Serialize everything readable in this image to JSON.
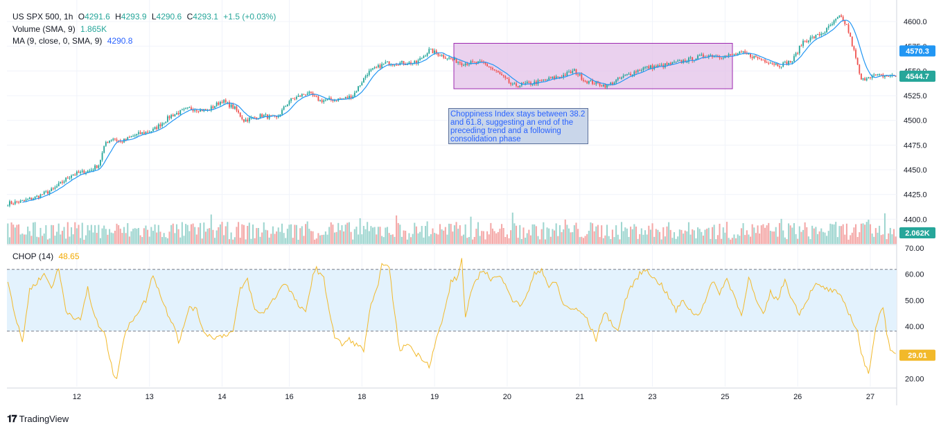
{
  "symbol": "US SPX 500, 1h",
  "ohlc": {
    "open_label": "O",
    "open": "4291.6",
    "high_label": "H",
    "high": "4293.9",
    "low_label": "L",
    "low": "4290.6",
    "close_label": "C",
    "close": "4293.1",
    "change": "+1.5 (+0.03%)"
  },
  "volume_indicator": {
    "label": "Volume (SMA, 9)",
    "value": "1.865K"
  },
  "ma_indicator": {
    "label": "MA (9, close, 0, SMA, 9)",
    "value": "4290.8"
  },
  "chop_indicator": {
    "label": "CHOP (14)",
    "value": "48.65"
  },
  "annotation_text": "Choppiness Index stays between 38.2 and 61.8, suggesting an end of the preceding trend and a following consolidation phase",
  "brand": "TradingView",
  "colors": {
    "up": "#26a69a",
    "down": "#ef5350",
    "ma": "#2196f3",
    "chop": "#f2b92a",
    "range_box": "#e1bee7",
    "chop_band": "#e3f2fd"
  },
  "chart_data": [
    {
      "type": "candlestick",
      "title": "US SPX 500, 1h",
      "y_ticks": [
        "4600.0",
        "4575.0",
        "4550.0",
        "4525.0",
        "4500.0",
        "4475.0",
        "4450.0",
        "4425.0",
        "4400.0"
      ],
      "x_ticks": [
        "12",
        "13",
        "14",
        "16",
        "18",
        "19",
        "20",
        "21",
        "23",
        "25",
        "26",
        "27"
      ],
      "ylim": [
        4375,
        4612
      ],
      "last_price_label": "4544.7",
      "ma_price_label": "4570.3",
      "volume_label": "2.062K",
      "series": [
        {
          "name": "price",
          "anchors": [
            [
              0,
              4416
            ],
            [
              8,
              4418
            ],
            [
              15,
              4422
            ],
            [
              25,
              4430
            ],
            [
              35,
              4445
            ],
            [
              45,
              4449
            ],
            [
              50,
              4455
            ],
            [
              54,
              4478
            ],
            [
              58,
              4482
            ],
            [
              62,
              4478
            ],
            [
              70,
              4485
            ],
            [
              80,
              4490
            ],
            [
              90,
              4505
            ],
            [
              100,
              4512
            ],
            [
              110,
              4510
            ],
            [
              118,
              4520
            ],
            [
              125,
              4512
            ],
            [
              130,
              4500
            ],
            [
              140,
              4505
            ],
            [
              148,
              4502
            ],
            [
              155,
              4520
            ],
            [
              165,
              4528
            ],
            [
              172,
              4520
            ],
            [
              185,
              4522
            ],
            [
              190,
              4525
            ],
            [
              198,
              4548
            ],
            [
              208,
              4558
            ],
            [
              225,
              4558
            ],
            [
              232,
              4571
            ],
            [
              240,
              4565
            ],
            [
              250,
              4558
            ],
            [
              262,
              4558
            ],
            [
              270,
              4548
            ],
            [
              278,
              4535
            ],
            [
              290,
              4538
            ],
            [
              305,
              4545
            ],
            [
              312,
              4550
            ],
            [
              318,
              4540
            ],
            [
              330,
              4535
            ],
            [
              340,
              4545
            ],
            [
              350,
              4553
            ],
            [
              360,
              4555
            ],
            [
              372,
              4560
            ],
            [
              385,
              4566
            ],
            [
              395,
              4565
            ],
            [
              405,
              4568
            ],
            [
              418,
              4560
            ],
            [
              425,
              4556
            ],
            [
              432,
              4560
            ],
            [
              438,
              4580
            ],
            [
              445,
              4585
            ],
            [
              450,
              4590
            ],
            [
              458,
              4605
            ],
            [
              462,
              4596
            ],
            [
              466,
              4570
            ],
            [
              470,
              4540
            ],
            [
              474,
              4545
            ]
          ]
        },
        {
          "name": "MA (9, close, 0, SMA, 9)"
        },
        {
          "name": "Volume (SMA, 9)"
        }
      ],
      "annotations": [
        {
          "type": "rectangle",
          "x_range": [
            "19",
            "25"
          ],
          "y_range": [
            4532,
            4578
          ]
        }
      ]
    },
    {
      "type": "line",
      "title": "CHOP (14)",
      "y_ticks": [
        "70.00",
        "60.00",
        "50.00",
        "40.00",
        "29.00",
        "20.00"
      ],
      "ylim": [
        17,
        71
      ],
      "band": [
        38.2,
        61.8
      ],
      "last_value_label": "29.01",
      "series": [
        {
          "name": "CHOP (14)",
          "anchors": [
            [
              0,
              58
            ],
            [
              4,
              44
            ],
            [
              8,
              34
            ],
            [
              12,
              54
            ],
            [
              16,
              57
            ],
            [
              20,
              60
            ],
            [
              24,
              55
            ],
            [
              28,
              62
            ],
            [
              32,
              46
            ],
            [
              36,
              44
            ],
            [
              40,
              42
            ],
            [
              44,
              55
            ],
            [
              46,
              48
            ],
            [
              50,
              40
            ],
            [
              54,
              36
            ],
            [
              56,
              28
            ],
            [
              58,
              22
            ],
            [
              60,
              21
            ],
            [
              64,
              36
            ],
            [
              68,
              42
            ],
            [
              72,
              46
            ],
            [
              76,
              50
            ],
            [
              80,
              60
            ],
            [
              84,
              52
            ],
            [
              88,
              45
            ],
            [
              92,
              40
            ],
            [
              94,
              34
            ],
            [
              98,
              42
            ],
            [
              100,
              48
            ],
            [
              104,
              46
            ],
            [
              108,
              38
            ],
            [
              112,
              36
            ],
            [
              116,
              36
            ],
            [
              120,
              37
            ],
            [
              124,
              38
            ],
            [
              128,
              54
            ],
            [
              132,
              58
            ],
            [
              136,
              46
            ],
            [
              140,
              45
            ],
            [
              144,
              48
            ],
            [
              148,
              52
            ],
            [
              152,
              57
            ],
            [
              156,
              53
            ],
            [
              160,
              48
            ],
            [
              164,
              45
            ],
            [
              168,
              60
            ],
            [
              170,
              62
            ],
            [
              174,
              58
            ],
            [
              176,
              50
            ],
            [
              180,
              36
            ],
            [
              184,
              33
            ],
            [
              188,
              35
            ],
            [
              192,
              33
            ],
            [
              196,
              31
            ],
            [
              198,
              40
            ],
            [
              200,
              48
            ],
            [
              204,
              55
            ],
            [
              206,
              65
            ],
            [
              210,
              62
            ],
            [
              214,
              40
            ],
            [
              216,
              30
            ],
            [
              220,
              34
            ],
            [
              224,
              30
            ],
            [
              228,
              28
            ],
            [
              230,
              27
            ],
            [
              232,
              25
            ],
            [
              236,
              35
            ],
            [
              240,
              44
            ],
            [
              244,
              57
            ],
            [
              248,
              59
            ],
            [
              250,
              66
            ],
            [
              252,
              43
            ],
            [
              254,
              50
            ],
            [
              258,
              58
            ],
            [
              262,
              62
            ],
            [
              266,
              58
            ],
            [
              270,
              59
            ],
            [
              274,
              57
            ],
            [
              278,
              50
            ],
            [
              282,
              48
            ],
            [
              286,
              52
            ],
            [
              290,
              60
            ],
            [
              294,
              62
            ],
            [
              298,
              55
            ],
            [
              302,
              57
            ],
            [
              306,
              48
            ],
            [
              310,
              47
            ],
            [
              314,
              46
            ],
            [
              318,
              44
            ],
            [
              322,
              38
            ],
            [
              324,
              35
            ],
            [
              328,
              45
            ],
            [
              330,
              44
            ],
            [
              334,
              40
            ],
            [
              336,
              38
            ],
            [
              340,
              50
            ],
            [
              344,
              56
            ],
            [
              348,
              60
            ],
            [
              352,
              62
            ],
            [
              356,
              58
            ],
            [
              360,
              56
            ],
            [
              364,
              51
            ],
            [
              368,
              46
            ],
            [
              372,
              50
            ],
            [
              376,
              46
            ],
            [
              380,
              44
            ],
            [
              384,
              50
            ],
            [
              388,
              57
            ],
            [
              392,
              53
            ],
            [
              396,
              58
            ],
            [
              400,
              52
            ],
            [
              404,
              44
            ],
            [
              408,
              59
            ],
            [
              412,
              50
            ],
            [
              416,
              44
            ],
            [
              420,
              53
            ],
            [
              424,
              50
            ],
            [
              428,
              58
            ],
            [
              432,
              50
            ],
            [
              436,
              45
            ],
            [
              440,
              50
            ],
            [
              444,
              56
            ],
            [
              448,
              55
            ],
            [
              452,
              54
            ],
            [
              456,
              53
            ],
            [
              460,
              50
            ],
            [
              464,
              44
            ],
            [
              468,
              38
            ],
            [
              470,
              30
            ],
            [
              472,
              25
            ],
            [
              474,
              22
            ],
            [
              478,
              40
            ],
            [
              482,
              48
            ],
            [
              484,
              38
            ],
            [
              486,
              30
            ],
            [
              490,
              29
            ]
          ]
        }
      ]
    }
  ]
}
